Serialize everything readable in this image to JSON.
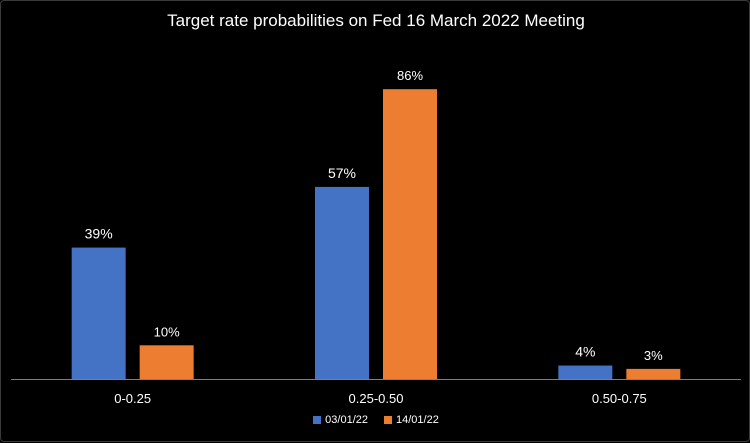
{
  "chart_data": {
    "type": "bar",
    "title": "Target rate probabilities on Fed 16 March 2022 Meeting",
    "xlabel": "",
    "ylabel": "",
    "categories": [
      "0-0.25",
      "0.25-0.50",
      "0.50-0.75"
    ],
    "series": [
      {
        "name": "03/01/22",
        "color": "#4472C4",
        "values": [
          39,
          57,
          4
        ],
        "labels": [
          "39%",
          "57%",
          "4%"
        ]
      },
      {
        "name": "14/01/22",
        "color": "#ED7D31",
        "values": [
          10,
          86,
          3
        ],
        "labels": [
          "10%",
          "86%",
          "3%"
        ]
      }
    ],
    "ylim": [
      0,
      100
    ],
    "grid": false,
    "legend_position": "bottom"
  }
}
